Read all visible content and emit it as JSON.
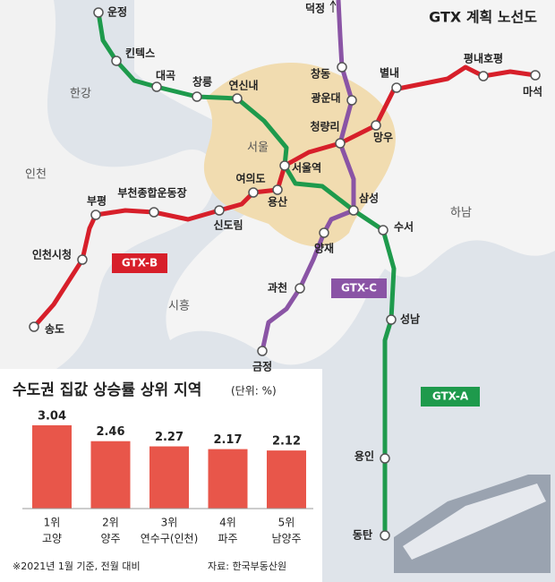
{
  "map": {
    "title": "GTX 계획 노선도",
    "regions": [
      "한강",
      "서울",
      "인천",
      "하남",
      "시흥"
    ],
    "lines": [
      {
        "name": "GTX-A",
        "color": "#1e9a4c"
      },
      {
        "name": "GTX-B",
        "color": "#d71f2a"
      },
      {
        "name": "GTX-C",
        "color": "#8a54a5"
      }
    ],
    "stations": [
      "운정",
      "킨텍스",
      "대곡",
      "창릉",
      "연신내",
      "서울역",
      "삼성",
      "수서",
      "성남",
      "용인",
      "동탄",
      "송도",
      "인천시청",
      "부평",
      "부천종합운동장",
      "신도림",
      "여의도",
      "용산",
      "청량리",
      "망우",
      "별내",
      "평내호평",
      "마석",
      "덕정",
      "창동",
      "광운대",
      "양재",
      "과천",
      "금정"
    ]
  },
  "chart_data": {
    "type": "bar",
    "title": "수도권 집값 상승률 상위 지역",
    "unit": "(단위: %)",
    "ranks": [
      "1위",
      "2위",
      "3위",
      "4위",
      "5위"
    ],
    "categories": [
      "고양",
      "양주",
      "연수구(인천)",
      "파주",
      "남양주"
    ],
    "values": [
      3.04,
      2.46,
      2.27,
      2.17,
      2.12
    ],
    "color": "#e8564a"
  },
  "notes": {
    "basis": "※2021년 1월 기준, 전월 대비",
    "source": "자료: 한국부동산원"
  }
}
